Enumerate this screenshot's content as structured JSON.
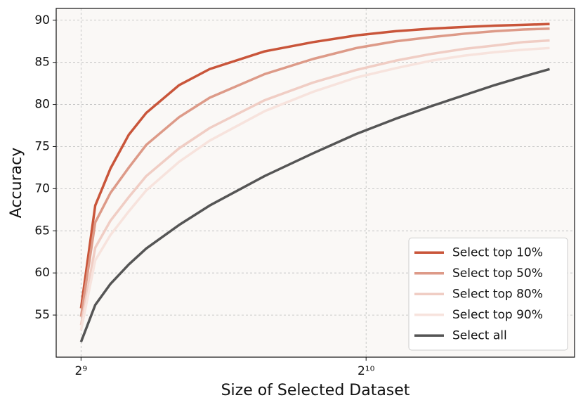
{
  "chart_data": {
    "type": "line",
    "x_label": "Size of Selected Dataset",
    "y_label": "Accuracy",
    "x": [
      512,
      530,
      550,
      575,
      600,
      650,
      700,
      800,
      900,
      1000,
      1100,
      1200,
      1300,
      1400,
      1500,
      1600
    ],
    "series": [
      {
        "name": "Select top 10%",
        "color": "#c9553a",
        "values": [
          55.8,
          68.0,
          72.4,
          76.4,
          79.0,
          82.3,
          84.2,
          86.3,
          87.4,
          88.2,
          88.7,
          89.0,
          89.2,
          89.35,
          89.45,
          89.55
        ]
      },
      {
        "name": "Select top 50%",
        "color": "#dd9a88",
        "values": [
          54.8,
          66.0,
          69.5,
          72.5,
          75.2,
          78.5,
          80.8,
          83.6,
          85.4,
          86.7,
          87.5,
          88.0,
          88.4,
          88.7,
          88.9,
          89.0
        ]
      },
      {
        "name": "Select top 80%",
        "color": "#f0cdc4",
        "values": [
          53.8,
          63.0,
          66.2,
          69.0,
          71.5,
          74.8,
          77.2,
          80.5,
          82.6,
          84.1,
          85.2,
          86.0,
          86.6,
          87.0,
          87.4,
          87.6
        ]
      },
      {
        "name": "Select top 90%",
        "color": "#f7e3dd",
        "values": [
          53.2,
          61.5,
          64.5,
          67.3,
          69.8,
          73.2,
          75.7,
          79.2,
          81.5,
          83.2,
          84.3,
          85.2,
          85.8,
          86.2,
          86.5,
          86.7
        ]
      },
      {
        "name": "Select all",
        "color": "#555555",
        "values": [
          51.8,
          56.2,
          58.7,
          61.0,
          62.9,
          65.7,
          68.0,
          71.5,
          74.2,
          76.5,
          78.3,
          79.8,
          81.1,
          82.3,
          83.3,
          84.2
        ]
      }
    ],
    "xscale": "log2",
    "xlim": [
      482,
      1700
    ],
    "xticks": [
      {
        "value": 512,
        "label": "2⁹"
      },
      {
        "value": 1024,
        "label": "2¹⁰"
      }
    ],
    "ylim": [
      50,
      91.4
    ],
    "yticks": [
      55,
      60,
      65,
      70,
      75,
      80,
      85,
      90
    ],
    "grid": true,
    "legend": "lower right"
  }
}
